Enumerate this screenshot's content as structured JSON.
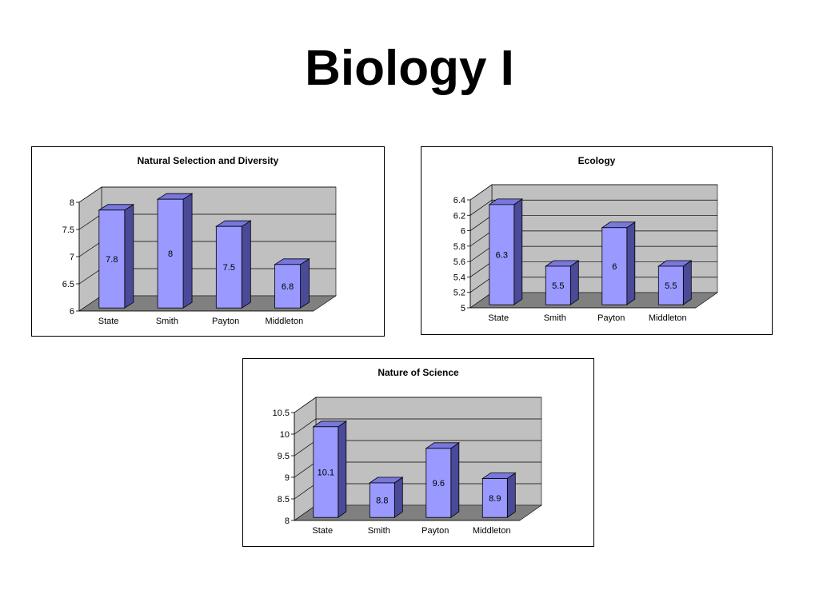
{
  "title": "Biology I",
  "chart_data": [
    {
      "type": "bar",
      "title": "Natural Selection and Diversity",
      "categories": [
        "State",
        "Smith",
        "Payton",
        "Middleton"
      ],
      "values": [
        7.8,
        8,
        7.5,
        6.8
      ],
      "value_labels": [
        "7.8",
        "8",
        "7.5",
        "6.8"
      ],
      "ylim": [
        6,
        8
      ],
      "yticks": [
        6,
        6.5,
        7,
        7.5,
        8
      ],
      "ytick_labels": [
        "6",
        "6.5",
        "7",
        "7.5",
        "8"
      ],
      "xlabel": "",
      "ylabel": "",
      "grid": true,
      "legend": false,
      "style": "3d",
      "colors": {
        "bar_front": "#9999ff",
        "bar_top": "#7777dd",
        "bar_side": "#4a4a99",
        "wall": "#c0c0c0",
        "floor": "#808080"
      }
    },
    {
      "type": "bar",
      "title": "Ecology",
      "categories": [
        "State",
        "Smith",
        "Payton",
        "Middleton"
      ],
      "values": [
        6.3,
        5.5,
        6,
        5.5
      ],
      "value_labels": [
        "6.3",
        "5.5",
        "6",
        "5.5"
      ],
      "ylim": [
        5,
        6.4
      ],
      "yticks": [
        5,
        5.2,
        5.4,
        5.6,
        5.8,
        6,
        6.2,
        6.4
      ],
      "ytick_labels": [
        "5",
        "5.2",
        "5.4",
        "5.6",
        "5.8",
        "6",
        "6.2",
        "6.4"
      ],
      "xlabel": "",
      "ylabel": "",
      "grid": true,
      "legend": false,
      "style": "3d",
      "colors": {
        "bar_front": "#9999ff",
        "bar_top": "#7777dd",
        "bar_side": "#4a4a99",
        "wall": "#c0c0c0",
        "floor": "#808080"
      }
    },
    {
      "type": "bar",
      "title": "Nature of Science",
      "categories": [
        "State",
        "Smith",
        "Payton",
        "Middleton"
      ],
      "values": [
        10.1,
        8.8,
        9.6,
        8.9
      ],
      "value_labels": [
        "10.1",
        "8.8",
        "9.6",
        "8.9"
      ],
      "ylim": [
        8,
        10.5
      ],
      "yticks": [
        8,
        8.5,
        9,
        9.5,
        10,
        10.5
      ],
      "ytick_labels": [
        "8",
        "8.5",
        "9",
        "9.5",
        "10",
        "10.5"
      ],
      "xlabel": "",
      "ylabel": "",
      "grid": true,
      "legend": false,
      "style": "3d",
      "colors": {
        "bar_front": "#9999ff",
        "bar_top": "#7777dd",
        "bar_side": "#4a4a99",
        "wall": "#c0c0c0",
        "floor": "#808080"
      }
    }
  ]
}
